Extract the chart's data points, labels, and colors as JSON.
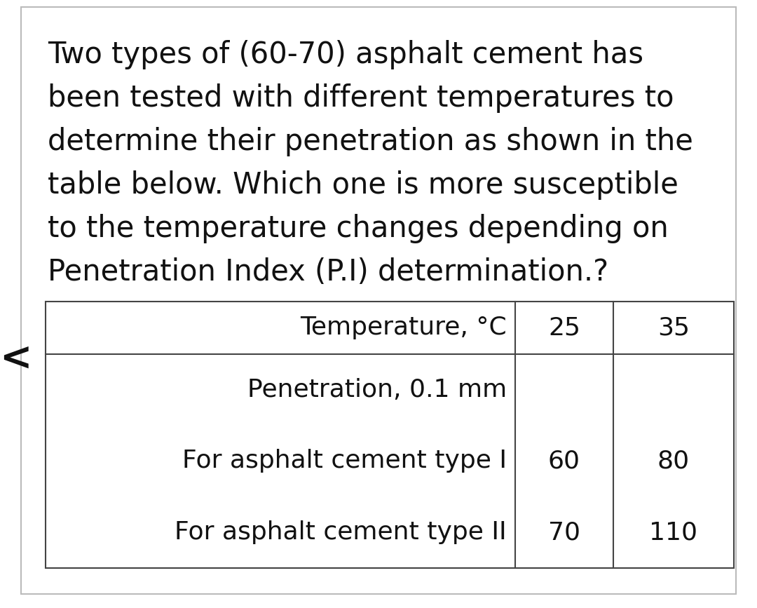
{
  "background_color": "#ffffff",
  "outer_border_color": "#bbbbbb",
  "left_arrow": "<",
  "paragraph_lines": [
    "Two types of (60-70) asphalt cement has",
    "been tested with different temperatures to",
    "determine their penetration as shown in the",
    "table below. Which one is more susceptible",
    "to the temperature changes depending on",
    "Penetration Index (P.I) determination.?"
  ],
  "font_size_paragraph": 30,
  "font_size_table": 26,
  "text_color": "#111111",
  "table_border_color": "#444444",
  "table_line_color": "#444444",
  "fig_width": 10.8,
  "fig_height": 8.67,
  "header_row": [
    "Temperature, °C",
    "25",
    "35"
  ],
  "data_rows": [
    [
      "Penetration, 0.1 mm",
      "",
      ""
    ],
    [
      "For asphalt cement type I",
      "60",
      "80"
    ],
    [
      "For asphalt cement type II",
      "70",
      "110"
    ]
  ]
}
